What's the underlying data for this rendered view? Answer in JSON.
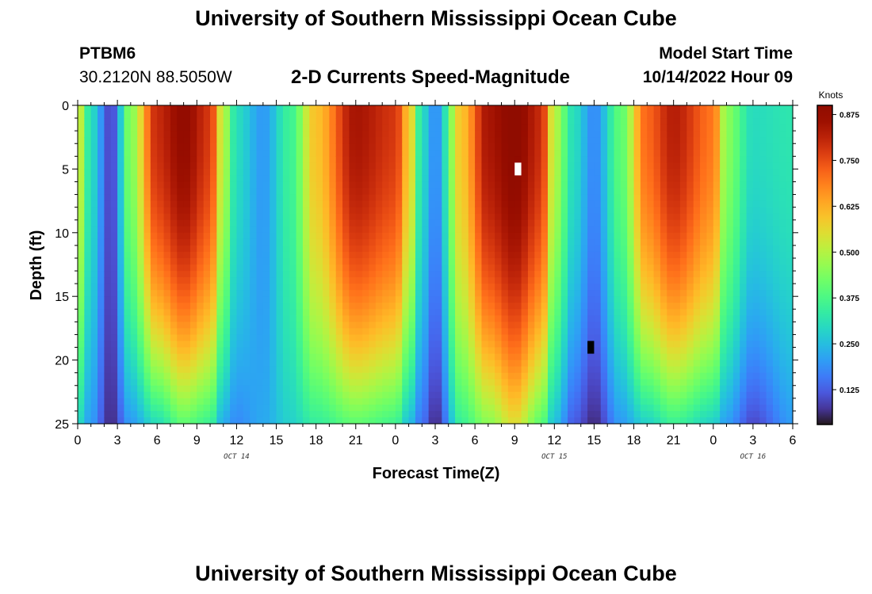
{
  "header": {
    "title": "University of Southern Mississippi Ocean Cube",
    "station": "PTBM6",
    "coords": "30.2120N  88.5050W",
    "subtitle": "2-D Currents Speed-Magnitude",
    "model_label": "Model Start Time",
    "model_time": "10/14/2022 Hour 09"
  },
  "footer": {
    "title": "University of Southern Mississippi Ocean Cube"
  },
  "colors": {
    "background": "#ffffff",
    "cb_low": "#30123b",
    "cb_high": "#7a0403",
    "masked_cell_light": "#ffffff",
    "masked_cell_dark": "#000000"
  },
  "chart_data": {
    "type": "heatmap",
    "title": "2-D Currents Speed-Magnitude",
    "xlabel": "Forecast Time(Z)",
    "ylabel": "Depth (ft)",
    "x_hours_range": [
      0,
      54
    ],
    "ylim": [
      0,
      25
    ],
    "y_inverted": true,
    "x_ticks": [
      {
        "h": 0,
        "label": "0"
      },
      {
        "h": 3,
        "label": "3"
      },
      {
        "h": 6,
        "label": "6"
      },
      {
        "h": 9,
        "label": "9"
      },
      {
        "h": 12,
        "label": "12"
      },
      {
        "h": 15,
        "label": "15"
      },
      {
        "h": 18,
        "label": "18"
      },
      {
        "h": 21,
        "label": "21"
      },
      {
        "h": 24,
        "label": "0"
      },
      {
        "h": 27,
        "label": "3"
      },
      {
        "h": 30,
        "label": "6"
      },
      {
        "h": 33,
        "label": "9"
      },
      {
        "h": 36,
        "label": "12"
      },
      {
        "h": 39,
        "label": "15"
      },
      {
        "h": 42,
        "label": "18"
      },
      {
        "h": 45,
        "label": "21"
      },
      {
        "h": 48,
        "label": "0"
      },
      {
        "h": 51,
        "label": "3"
      },
      {
        "h": 54,
        "label": "6"
      }
    ],
    "y_ticks": [
      {
        "d": 0,
        "label": "0"
      },
      {
        "d": 5,
        "label": "5"
      },
      {
        "d": 10,
        "label": "10"
      },
      {
        "d": 15,
        "label": "15"
      },
      {
        "d": 20,
        "label": "20"
      },
      {
        "d": 25,
        "label": "25"
      }
    ],
    "date_labels": [
      {
        "h": 12,
        "label": "OCT 14"
      },
      {
        "h": 36,
        "label": "OCT 15"
      },
      {
        "h": 51,
        "label": "OCT 16"
      }
    ],
    "colorbar": {
      "title": "Knots",
      "min": 0.03,
      "max": 0.9,
      "ticks": [
        {
          "v": 0.125,
          "label": "0.125"
        },
        {
          "v": 0.25,
          "label": "0.250"
        },
        {
          "v": 0.375,
          "label": "0.375"
        },
        {
          "v": 0.5,
          "label": "0.500"
        },
        {
          "v": 0.625,
          "label": "0.625"
        },
        {
          "v": 0.75,
          "label": "0.750"
        },
        {
          "v": 0.875,
          "label": "0.875"
        }
      ]
    },
    "grid_resolution": {
      "dt_hours": 0.5,
      "dz_ft": 0.5
    },
    "surface_speed_profile_knots": [
      [
        0,
        0.55
      ],
      [
        1,
        0.3
      ],
      [
        2.5,
        0.09
      ],
      [
        4,
        0.45
      ],
      [
        6,
        0.8
      ],
      [
        8,
        0.88
      ],
      [
        10,
        0.78
      ],
      [
        11,
        0.5
      ],
      [
        12,
        0.3
      ],
      [
        14,
        0.2
      ],
      [
        16,
        0.35
      ],
      [
        18,
        0.6
      ],
      [
        21,
        0.84
      ],
      [
        24,
        0.78
      ],
      [
        25,
        0.6
      ],
      [
        26,
        0.3
      ],
      [
        27,
        0.18
      ],
      [
        29,
        0.6
      ],
      [
        31,
        0.84
      ],
      [
        33,
        0.9
      ],
      [
        35,
        0.8
      ],
      [
        36,
        0.5
      ],
      [
        37.5,
        0.3
      ],
      [
        39,
        0.18
      ],
      [
        41,
        0.4
      ],
      [
        43,
        0.72
      ],
      [
        45,
        0.82
      ],
      [
        48,
        0.7
      ],
      [
        49,
        0.45
      ],
      [
        51,
        0.3
      ],
      [
        54,
        0.32
      ]
    ],
    "bottom_speed_profile_knots": [
      [
        0,
        0.3
      ],
      [
        1,
        0.2
      ],
      [
        2.5,
        0.06
      ],
      [
        4,
        0.2
      ],
      [
        6,
        0.3
      ],
      [
        8,
        0.4
      ],
      [
        10,
        0.35
      ],
      [
        11,
        0.22
      ],
      [
        12,
        0.18
      ],
      [
        14,
        0.22
      ],
      [
        16,
        0.28
      ],
      [
        18,
        0.34
      ],
      [
        21,
        0.4
      ],
      [
        24,
        0.36
      ],
      [
        25,
        0.25
      ],
      [
        26,
        0.15
      ],
      [
        27,
        0.06
      ],
      [
        29,
        0.35
      ],
      [
        31,
        0.45
      ],
      [
        33,
        0.55
      ],
      [
        35,
        0.4
      ],
      [
        36,
        0.25
      ],
      [
        37.5,
        0.12
      ],
      [
        39,
        0.06
      ],
      [
        41,
        0.2
      ],
      [
        43,
        0.28
      ],
      [
        45,
        0.35
      ],
      [
        48,
        0.28
      ],
      [
        49,
        0.2
      ],
      [
        51,
        0.1
      ],
      [
        54,
        0.2
      ]
    ],
    "masked_cells": [
      {
        "h_start": 33.0,
        "h_end": 33.5,
        "depth_start": 4.5,
        "depth_end": 5.5,
        "fill": "light"
      },
      {
        "h_start": 38.5,
        "h_end": 39.0,
        "depth_start": 18.5,
        "depth_end": 19.5,
        "fill": "dark"
      }
    ]
  }
}
